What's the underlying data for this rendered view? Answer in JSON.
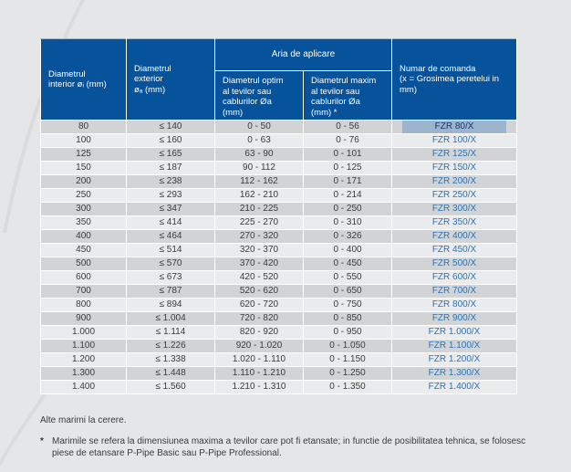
{
  "table": {
    "header": {
      "col_interior": "Diametrul\ninterior øᵢ (mm)",
      "col_exterior": "Diametrul\nexterior\nøₐ (mm)",
      "aria_span": "Aria de aplicare",
      "col_optim": "Diametrul optim\nal tevilor sau\ncablurilor Øa\n(mm)",
      "col_maxim": "Diametrul maxim\nal tevilor sau\ncablurilor Øa\n(mm) *",
      "col_comanda": "Numar de comanda\n(x = Grosimea peretelui in\nmm)"
    },
    "rows": [
      {
        "interior": "80",
        "exterior": "≤ 140",
        "optim": "0 - 50",
        "maxim": "0 - 56",
        "comanda": "FZR 80/X",
        "highlighted": true
      },
      {
        "interior": "100",
        "exterior": "≤ 160",
        "optim": "0 - 63",
        "maxim": "0 - 76",
        "comanda": "FZR 100/X",
        "highlighted": false
      },
      {
        "interior": "125",
        "exterior": "≤ 165",
        "optim": "63 - 90",
        "maxim": "0 - 101",
        "comanda": "FZR 125/X",
        "highlighted": false
      },
      {
        "interior": "150",
        "exterior": "≤ 187",
        "optim": "90 - 112",
        "maxim": "0 - 125",
        "comanda": "FZR 150/X",
        "highlighted": false
      },
      {
        "interior": "200",
        "exterior": "≤ 238",
        "optim": "112 - 162",
        "maxim": "0 - 171",
        "comanda": "FZR 200/X",
        "highlighted": false
      },
      {
        "interior": "250",
        "exterior": "≤ 293",
        "optim": "162 - 210",
        "maxim": "0 - 214",
        "comanda": "FZR 250/X",
        "highlighted": false
      },
      {
        "interior": "300",
        "exterior": "≤ 347",
        "optim": "210 - 225",
        "maxim": "0 - 250",
        "comanda": "FZR 300/X",
        "highlighted": false
      },
      {
        "interior": "350",
        "exterior": "≤ 414",
        "optim": "225 - 270",
        "maxim": "0 - 310",
        "comanda": "FZR 350/X",
        "highlighted": false
      },
      {
        "interior": "400",
        "exterior": "≤ 464",
        "optim": "270 - 320",
        "maxim": "0 - 326",
        "comanda": "FZR 400/X",
        "highlighted": false
      },
      {
        "interior": "450",
        "exterior": "≤ 514",
        "optim": "320 - 370",
        "maxim": "0 - 400",
        "comanda": "FZR 450/X",
        "highlighted": false
      },
      {
        "interior": "500",
        "exterior": "≤ 570",
        "optim": "370 - 420",
        "maxim": "0 - 450",
        "comanda": "FZR 500/X",
        "highlighted": false
      },
      {
        "interior": "600",
        "exterior": "≤ 673",
        "optim": "420 - 520",
        "maxim": "0 - 550",
        "comanda": "FZR 600/X",
        "highlighted": false
      },
      {
        "interior": "700",
        "exterior": "≤ 787",
        "optim": "520 - 620",
        "maxim": "0 - 650",
        "comanda": "FZR 700/X",
        "highlighted": false
      },
      {
        "interior": "800",
        "exterior": "≤ 894",
        "optim": "620 - 720",
        "maxim": "0 - 750",
        "comanda": "FZR 800/X",
        "highlighted": false
      },
      {
        "interior": "900",
        "exterior": "≤ 1.004",
        "optim": "720 - 820",
        "maxim": "0 - 850",
        "comanda": "FZR 900/X",
        "highlighted": false
      },
      {
        "interior": "1.000",
        "exterior": "≤ 1.114",
        "optim": "820 - 920",
        "maxim": "0 - 950",
        "comanda": "FZR 1.000/X",
        "highlighted": false
      },
      {
        "interior": "1.100",
        "exterior": "≤ 1.226",
        "optim": "920 - 1.020",
        "maxim": "0 - 1.050",
        "comanda": "FZR 1.100/X",
        "highlighted": false
      },
      {
        "interior": "1.200",
        "exterior": "≤ 1.338",
        "optim": "1.020 - 1.110",
        "maxim": "0 - 1.150",
        "comanda": "FZR 1.200/X",
        "highlighted": false
      },
      {
        "interior": "1.300",
        "exterior": "≤ 1.448",
        "optim": "1.110 - 1.210",
        "maxim": "0 - 1.250",
        "comanda": "FZR 1.300/X",
        "highlighted": false
      },
      {
        "interior": "1.400",
        "exterior": "≤ 1.560",
        "optim": "1.210 - 1.310",
        "maxim": "0 - 1.350",
        "comanda": "FZR 1.400/X",
        "highlighted": false
      }
    ]
  },
  "notes": {
    "other_sizes": "Alte marimi la cerere.",
    "footnote_marker": "*",
    "footnote": "Marimile se refera la dimensiunea maxima a tevilor care pot fi etansate; in functie de posibilitatea tehnica, se folosesc\npiese de etansare P-Pipe Basic sau P-Pipe Professional."
  },
  "colors": {
    "page_bg": "#E5E6E8",
    "header_bg": "#06529B",
    "header_text": "#FFFFFF",
    "row_dark": "#D2D3D5",
    "row_light": "#EAEBED",
    "data_text": "#3B3B3B",
    "link_blue": "#2D73B4",
    "highlight_bg": "#9DB4CF",
    "highlight_text": "#13386B"
  }
}
